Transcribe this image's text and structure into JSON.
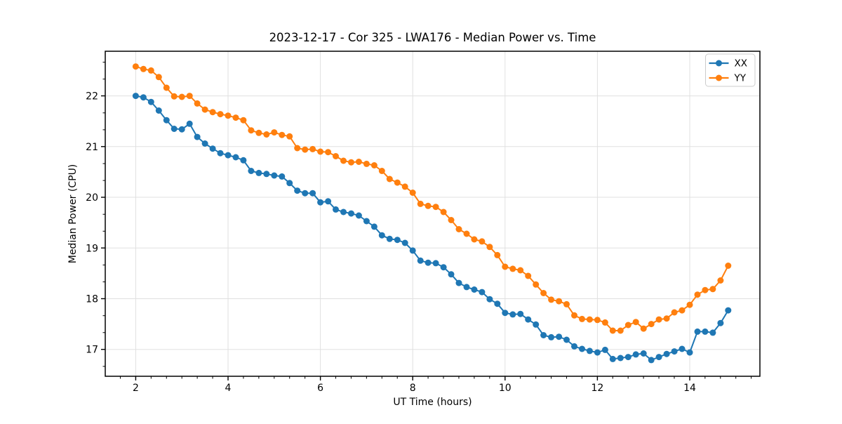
{
  "chart_data": {
    "type": "line",
    "title": "2023-12-17 - Cor 325 - LWA176 - Median Power vs. Time",
    "xlabel": "UT Time (hours)",
    "ylabel": "Median Power (CPU)",
    "xlim": [
      1.34,
      15.52
    ],
    "ylim": [
      16.47,
      22.88
    ],
    "xticks": [
      2,
      4,
      6,
      8,
      10,
      12,
      14
    ],
    "yticks": [
      17,
      18,
      19,
      20,
      21,
      22
    ],
    "minor_tick_step": 0.3333,
    "grid": true,
    "legend_position": "upper right",
    "x": [
      2.0,
      2.167,
      2.333,
      2.5,
      2.667,
      2.833,
      3.0,
      3.167,
      3.333,
      3.5,
      3.667,
      3.833,
      4.0,
      4.167,
      4.333,
      4.5,
      4.667,
      4.833,
      5.0,
      5.167,
      5.333,
      5.5,
      5.667,
      5.833,
      6.0,
      6.167,
      6.333,
      6.5,
      6.667,
      6.833,
      7.0,
      7.167,
      7.333,
      7.5,
      7.667,
      7.833,
      8.0,
      8.167,
      8.333,
      8.5,
      8.667,
      8.833,
      9.0,
      9.167,
      9.333,
      9.5,
      9.667,
      9.833,
      10.0,
      10.167,
      10.333,
      10.5,
      10.667,
      10.833,
      11.0,
      11.167,
      11.333,
      11.5,
      11.667,
      11.833,
      12.0,
      12.167,
      12.333,
      12.5,
      12.667,
      12.833,
      13.0,
      13.167,
      13.333,
      13.5,
      13.667,
      13.833,
      14.0,
      14.167,
      14.333,
      14.5,
      14.667,
      14.833
    ],
    "series": [
      {
        "name": "XX",
        "color": "#1f77b4",
        "marker": "circle",
        "y": [
          22.0,
          21.97,
          21.88,
          21.71,
          21.52,
          21.35,
          21.34,
          21.45,
          21.19,
          21.06,
          20.96,
          20.87,
          20.83,
          20.79,
          20.73,
          20.52,
          20.48,
          20.46,
          20.43,
          20.41,
          20.28,
          20.13,
          20.08,
          20.08,
          19.9,
          19.92,
          19.76,
          19.71,
          19.68,
          19.64,
          19.53,
          19.42,
          19.25,
          19.18,
          19.16,
          19.1,
          18.95,
          18.75,
          18.71,
          18.7,
          18.62,
          18.48,
          18.31,
          18.23,
          18.18,
          18.13,
          17.99,
          17.9,
          17.72,
          17.69,
          17.7,
          17.59,
          17.49,
          17.28,
          17.24,
          17.25,
          17.19,
          17.06,
          17.01,
          16.97,
          16.94,
          16.99,
          16.81,
          16.83,
          16.85,
          16.9,
          16.92,
          16.79,
          16.85,
          16.91,
          16.96,
          17.01,
          16.94,
          17.35,
          17.35,
          17.33,
          17.52,
          17.77
        ]
      },
      {
        "name": "YY",
        "color": "#ff7f0e",
        "marker": "circle",
        "y": [
          22.58,
          22.53,
          22.5,
          22.37,
          22.16,
          21.99,
          21.98,
          22.0,
          21.85,
          21.73,
          21.68,
          21.64,
          21.61,
          21.57,
          21.52,
          21.32,
          21.27,
          21.24,
          21.28,
          21.23,
          21.2,
          20.97,
          20.94,
          20.95,
          20.9,
          20.89,
          20.81,
          20.72,
          20.69,
          20.7,
          20.66,
          20.63,
          20.52,
          20.36,
          20.29,
          20.21,
          20.09,
          19.87,
          19.83,
          19.81,
          19.71,
          19.55,
          19.37,
          19.28,
          19.17,
          19.13,
          19.02,
          18.86,
          18.63,
          18.59,
          18.56,
          18.45,
          18.28,
          18.11,
          17.98,
          17.95,
          17.89,
          17.67,
          17.6,
          17.59,
          17.58,
          17.53,
          17.37,
          17.37,
          17.48,
          17.54,
          17.41,
          17.5,
          17.59,
          17.61,
          17.73,
          17.77,
          17.88,
          18.08,
          18.17,
          18.19,
          18.36,
          18.65
        ]
      }
    ]
  }
}
